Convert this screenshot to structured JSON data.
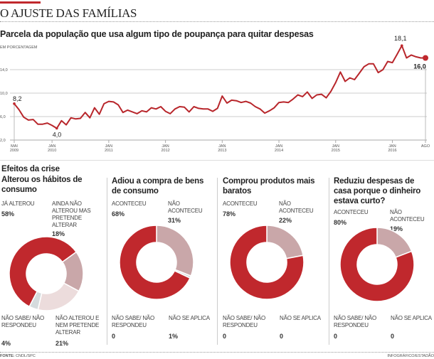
{
  "header": {
    "title": "O AJUSTE DAS FAMÍLIAS"
  },
  "colors": {
    "accent": "#c0282d",
    "mauve": "#c9a7a9",
    "pale": "#ecdcdc",
    "grey": "#d5dbdd"
  },
  "chart_data": [
    {
      "type": "line",
      "title": "Parcela da população que usa algum tipo de poupança para quitar despesas",
      "unit": "EM PORCENTAGEM",
      "ylim": [
        2,
        18
      ],
      "yticks": [
        "2,0",
        "6,0",
        "10,0",
        "14,0"
      ],
      "ytick_values": [
        2,
        6,
        10,
        14
      ],
      "grid": true,
      "x_start": "2009-05",
      "x_end": "2016-08",
      "xticks": [
        {
          "m": "MAI",
          "y": "2009",
          "d": "2009-05"
        },
        {
          "m": "JAN",
          "y": "2010",
          "d": "2010-01"
        },
        {
          "m": "JAN",
          "y": "2011",
          "d": "2011-01"
        },
        {
          "m": "JAN",
          "y": "2012",
          "d": "2012-01"
        },
        {
          "m": "JAN",
          "y": "2013",
          "d": "2013-01"
        },
        {
          "m": "JAN",
          "y": "2014",
          "d": "2014-01"
        },
        {
          "m": "JAN",
          "y": "2015",
          "d": "2015-01"
        },
        {
          "m": "JAN",
          "y": "2016",
          "d": "2016-01"
        },
        {
          "m": "AGO",
          "y": "",
          "d": "2016-08"
        }
      ],
      "values": [
        8.2,
        7.2,
        5.9,
        5.4,
        5.5,
        4.7,
        4.7,
        4.9,
        4.5,
        4.0,
        5.3,
        4.6,
        5.8,
        5.6,
        5.7,
        6.7,
        5.8,
        7.5,
        6.4,
        8.2,
        8.6,
        8.5,
        8.0,
        6.7,
        7.1,
        6.8,
        6.5,
        7.0,
        6.8,
        7.5,
        7.3,
        7.7,
        6.9,
        6.5,
        7.3,
        7.7,
        7.6,
        6.8,
        7.7,
        7.4,
        7.3,
        7.3,
        6.9,
        7.4,
        9.5,
        8.3,
        8.8,
        8.7,
        8.4,
        8.6,
        8.3,
        7.7,
        7.3,
        6.6,
        7.0,
        7.5,
        8.4,
        8.5,
        8.4,
        9.0,
        9.7,
        9.4,
        10.2,
        9.1,
        9.7,
        9.8,
        9.2,
        10.3,
        11.8,
        13.6,
        12.0,
        12.6,
        12.3,
        13.4,
        14.5,
        15.0,
        15.0,
        13.5,
        14.0,
        15.4,
        15.2,
        16.6,
        18.1,
        16.0,
        16.5,
        16.2,
        16.0,
        16.0
      ],
      "annotations": [
        {
          "text": "8,2",
          "d": "2009-05",
          "v": 8.2
        },
        {
          "text": "4,0",
          "d": "2010-02",
          "v": 4.0
        },
        {
          "text": "18,1",
          "d": "2016-03",
          "v": 18.1
        },
        {
          "text": "16,0",
          "d": "2016-08",
          "v": 16.0
        }
      ]
    },
    {
      "type": "pie",
      "title": "Alterou os hábitos de consumo",
      "slices": [
        {
          "label": "JÁ ALTEROU",
          "value": 58,
          "text": "58%"
        },
        {
          "label": "AINDA NÃO ALTEROU MAS PRETENDE ALTERAR",
          "value": 18,
          "text": "18%"
        },
        {
          "label": "NÃO ALTEROU E NEM PRETENDE ALTERAR",
          "value": 21,
          "text": "21%"
        },
        {
          "label": "NÃO SABE/ NÃO RESPONDEU",
          "value": 4,
          "text": "4%"
        }
      ]
    },
    {
      "type": "pie",
      "title": "Adiou a compra de bens de consumo",
      "slices": [
        {
          "label": "ACONTECEU",
          "value": 68,
          "text": "68%"
        },
        {
          "label": "NÃO ACONTECEU",
          "value": 31,
          "text": "31%"
        },
        {
          "label": "NÃO SE APLICA",
          "value": 1,
          "text": "1%"
        },
        {
          "label": "NÃO SABE/ NÃO RESPONDEU",
          "value": 0,
          "text": "0"
        }
      ]
    },
    {
      "type": "pie",
      "title": "Comprou produtos mais baratos",
      "slices": [
        {
          "label": "ACONTECEU",
          "value": 78,
          "text": "78%"
        },
        {
          "label": "NÃO ACONTECEU",
          "value": 22,
          "text": "22%"
        },
        {
          "label": "NÃO SE APLICA",
          "value": 0,
          "text": "0"
        },
        {
          "label": "NÃO SABE/ NÃO RESPONDEU",
          "value": 0,
          "text": "0"
        }
      ]
    },
    {
      "type": "pie",
      "title": "Reduziu despesas de casa porque o dinheiro estava curto?",
      "slices": [
        {
          "label": "ACONTECEU",
          "value": 80,
          "text": "80%"
        },
        {
          "label": "NÃO ACONTECEU",
          "value": 19,
          "text": "19%"
        },
        {
          "label": "NÃO SE APLICA",
          "value": 0,
          "text": "0"
        },
        {
          "label": "NÃO SABE/ NÃO RESPONDEU",
          "value": 0,
          "text": "0"
        }
      ]
    }
  ],
  "section": {
    "title": "Efeitos da crise"
  },
  "footer": {
    "source_label": "FONTE:",
    "source": "CNDL/SPC",
    "credit": "INFOGRÁFICO/ESTADÃO"
  }
}
